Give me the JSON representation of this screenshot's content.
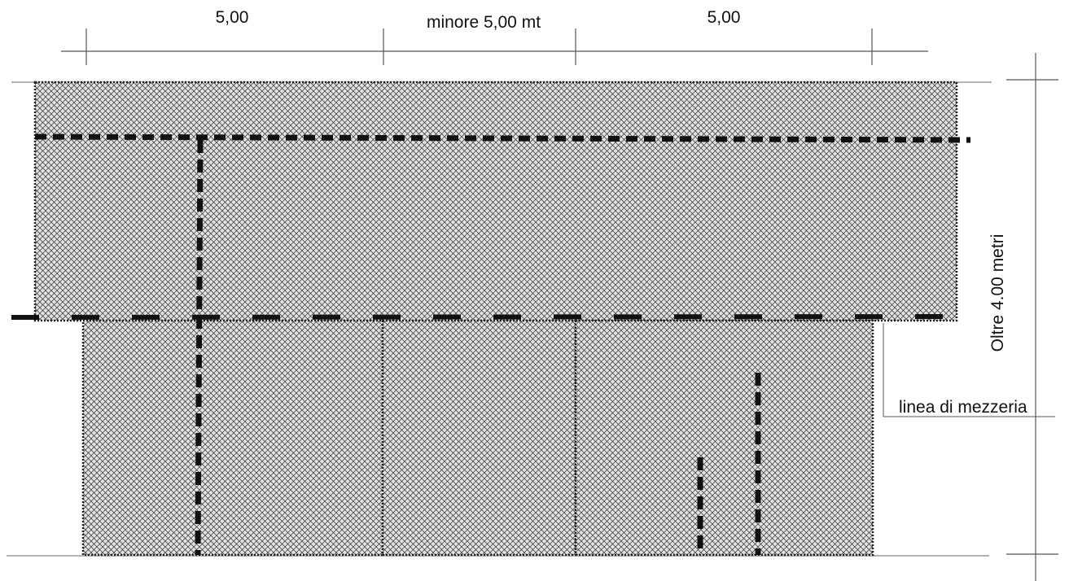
{
  "dimensions": {
    "left_span": "5,00",
    "middle_span": "minore 5,00 mt",
    "right_span": "5,00",
    "height": "Oltre 4.00 metri"
  },
  "labels": {
    "center_line": "linea di mezzeria"
  },
  "colors": {
    "hatch": "#2a2a2a",
    "dashed": "#1a1a1a",
    "fill": "#d9d9d9"
  }
}
